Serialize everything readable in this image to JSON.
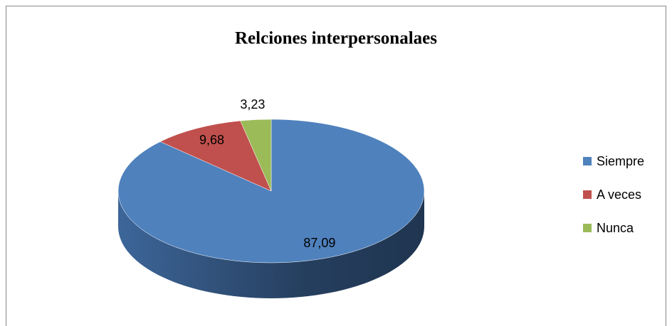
{
  "chart_data": {
    "type": "pie",
    "title": "Relciones interpersonalaes",
    "categories": [
      "Siempre",
      "A veces",
      "Nunca"
    ],
    "values": [
      87.09,
      9.68,
      3.23
    ],
    "value_labels": [
      "87,09",
      "9,68",
      "3,23"
    ],
    "colors": [
      "#4f81bd",
      "#c0504d",
      "#9bbb59"
    ],
    "legend": "right"
  }
}
